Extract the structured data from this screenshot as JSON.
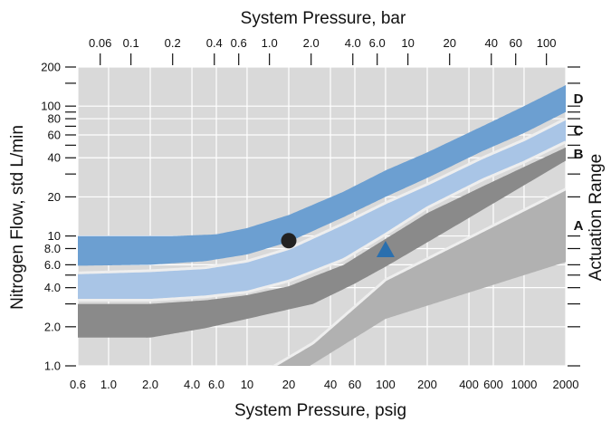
{
  "chart_data": {
    "type": "area",
    "title": "",
    "top_axis": {
      "title": "System Pressure, bar",
      "scale": "log",
      "tick_values": [
        0.06,
        0.1,
        0.2,
        0.4,
        0.6,
        1.0,
        2.0,
        4.0,
        6.0,
        10,
        20,
        40,
        60,
        100
      ],
      "tick_labels": [
        "0.06",
        "0.1",
        "0.2",
        "0.4",
        "0.6",
        "1.0",
        "2.0",
        "4.0",
        "6.0",
        "10",
        "20",
        "40",
        "60",
        "100"
      ]
    },
    "x_axis": {
      "title": "System Pressure, psig",
      "scale": "log",
      "range": [
        0.6,
        2000
      ],
      "tick_values": [
        0.6,
        1.0,
        2.0,
        4.0,
        6.0,
        10,
        20,
        40,
        60,
        100,
        200,
        400,
        600,
        1000,
        2000
      ],
      "tick_labels": [
        "0.6",
        "1.0",
        "2.0",
        "4.0",
        "6.0",
        "10",
        "20",
        "40",
        "60",
        "100",
        "200",
        "400",
        "600",
        "1000",
        "2000"
      ]
    },
    "y_axis": {
      "title": "Nitrogen Flow, std L/min",
      "scale": "log",
      "range": [
        1.0,
        200
      ],
      "tick_values": [
        1.0,
        2.0,
        4.0,
        6.0,
        8.0,
        10,
        20,
        40,
        60,
        80,
        100,
        200
      ],
      "tick_labels": [
        "1.0",
        "2.0",
        "4.0",
        "6.0",
        "8.0",
        "10",
        "20",
        "40",
        "60",
        "80",
        "100",
        "200"
      ],
      "unlabeled_minor_ticks": [
        3.0,
        5.0,
        30,
        50,
        70,
        90,
        150
      ]
    },
    "right_axis": {
      "title": "Actuation Range"
    },
    "grid": true,
    "series": [
      {
        "name": "A",
        "color": "#b1b1b1",
        "lower": [
          [
            0.6,
            0.5
          ],
          [
            10,
            0.5
          ],
          [
            100,
            2.3
          ],
          [
            2000,
            6.3
          ]
        ],
        "upper": [
          [
            0.6,
            0.5
          ],
          [
            10,
            0.75
          ],
          [
            30,
            1.5
          ],
          [
            100,
            4.6
          ],
          [
            2000,
            23
          ]
        ]
      },
      {
        "name": "B",
        "color": "#8a8a8a",
        "lower": [
          [
            0.6,
            1.65
          ],
          [
            2,
            1.65
          ],
          [
            5,
            1.95
          ],
          [
            10,
            2.3
          ],
          [
            30,
            3.0
          ],
          [
            60,
            4.3
          ],
          [
            100,
            5.8
          ],
          [
            300,
            11.5
          ],
          [
            2000,
            38
          ]
        ],
        "upper": [
          [
            0.6,
            3.0
          ],
          [
            2,
            3.0
          ],
          [
            5,
            3.2
          ],
          [
            10,
            3.5
          ],
          [
            20,
            4.1
          ],
          [
            50,
            6.0
          ],
          [
            100,
            9.5
          ],
          [
            200,
            15
          ],
          [
            500,
            24
          ],
          [
            1000,
            34
          ],
          [
            2000,
            48
          ]
        ]
      },
      {
        "name": "C",
        "color": "#a9c5e6",
        "lower": [
          [
            0.6,
            3.2
          ],
          [
            2,
            3.2
          ],
          [
            5,
            3.4
          ],
          [
            10,
            3.7
          ],
          [
            20,
            4.5
          ],
          [
            50,
            6.6
          ],
          [
            100,
            10.3
          ],
          [
            200,
            16.5
          ],
          [
            500,
            27
          ],
          [
            1000,
            37
          ],
          [
            2000,
            53
          ]
        ],
        "upper": [
          [
            0.6,
            5.2
          ],
          [
            2,
            5.4
          ],
          [
            5,
            5.7
          ],
          [
            10,
            6.4
          ],
          [
            20,
            8.0
          ],
          [
            50,
            12.5
          ],
          [
            100,
            18
          ],
          [
            200,
            25
          ],
          [
            500,
            40
          ],
          [
            1000,
            55
          ],
          [
            2000,
            80
          ]
        ]
      },
      {
        "name": "D",
        "color": "#6c9fd1",
        "lower": [
          [
            0.6,
            5.9
          ],
          [
            2,
            6.0
          ],
          [
            5,
            6.4
          ],
          [
            10,
            7.2
          ],
          [
            20,
            9.0
          ],
          [
            50,
            14
          ],
          [
            100,
            20
          ],
          [
            200,
            28
          ],
          [
            500,
            45
          ],
          [
            1000,
            62
          ],
          [
            2000,
            90
          ]
        ],
        "upper": [
          [
            0.6,
            10
          ],
          [
            3,
            10
          ],
          [
            6,
            10.3
          ],
          [
            10,
            11.5
          ],
          [
            20,
            14.5
          ],
          [
            50,
            22
          ],
          [
            100,
            32
          ],
          [
            200,
            44
          ],
          [
            500,
            70
          ],
          [
            1000,
            100
          ],
          [
            2000,
            145
          ]
        ]
      }
    ],
    "markers": [
      {
        "shape": "circle",
        "color": "#222222",
        "x": 20,
        "y": 9.2
      },
      {
        "shape": "triangle",
        "color": "#2a6fae",
        "x": 100,
        "y": 7.8
      }
    ]
  }
}
